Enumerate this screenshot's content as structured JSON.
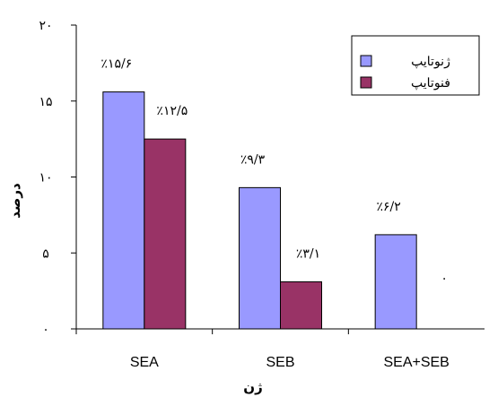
{
  "chart_data": {
    "type": "bar",
    "categories": [
      "SEA",
      "SEB",
      "SEA+SEB"
    ],
    "series": [
      {
        "name": "ژنوتایپ",
        "color": "#9999ff",
        "values": [
          15.6,
          9.3,
          6.2
        ],
        "labels": [
          "٪۱۵/۶",
          "٪۹/۳",
          "٪۶/۲"
        ]
      },
      {
        "name": "فنوتایپ",
        "color": "#993366",
        "values": [
          12.5,
          3.1,
          0
        ],
        "labels": [
          "٪۱۲/۵",
          "٪۳/۱",
          "۰"
        ]
      }
    ],
    "xlabel": "ژن",
    "ylabel": "درصد",
    "ylim": [
      0,
      20
    ],
    "yticks": [
      0,
      5,
      10,
      15,
      20
    ],
    "ytick_labels": [
      "۰",
      "۵",
      "۱۰",
      "۱۵",
      "۲۰"
    ],
    "grid": false,
    "legend_position": "top-right"
  }
}
